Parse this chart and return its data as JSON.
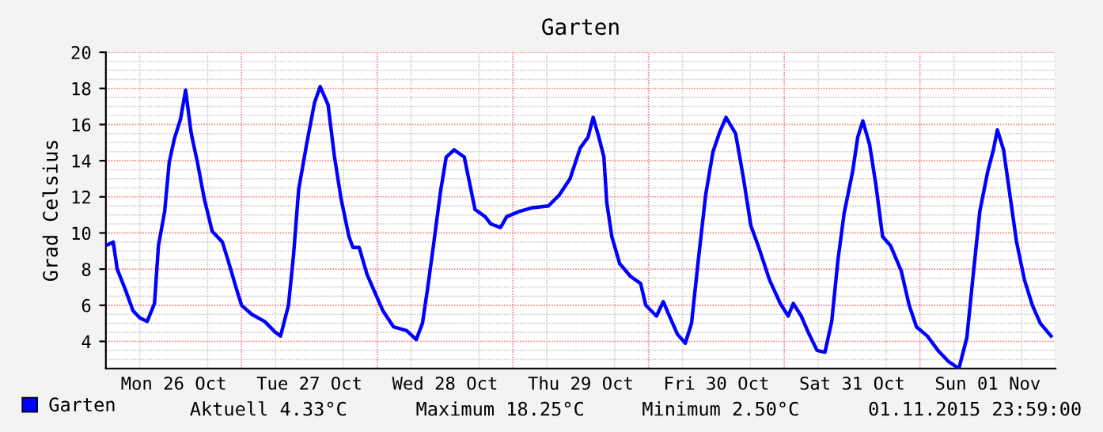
{
  "chart_data": {
    "type": "line",
    "title": "Garten",
    "ylabel": "Grad Celsius",
    "x": [
      "2015-10-26T00:00",
      "2015-10-26T01:18",
      "2015-10-26T02:00",
      "2015-10-26T03:24",
      "2015-10-26T04:48",
      "2015-10-26T06:00",
      "2015-10-26T07:18",
      "2015-10-26T08:36",
      "2015-10-26T09:18",
      "2015-10-26T10:24",
      "2015-10-26T11:12",
      "2015-10-26T12:06",
      "2015-10-26T13:12",
      "2015-10-26T14:06",
      "2015-10-26T15:06",
      "2015-10-26T16:12",
      "2015-10-26T17:24",
      "2015-10-26T18:48",
      "2015-10-26T20:36",
      "2015-10-26T21:36",
      "2015-10-26T23:00",
      "2015-10-27T00:00",
      "2015-10-27T01:48",
      "2015-10-27T04:06",
      "2015-10-27T06:00",
      "2015-10-27T06:54",
      "2015-10-27T08:18",
      "2015-10-27T09:12",
      "2015-10-27T10:06",
      "2015-10-27T11:30",
      "2015-10-27T12:54",
      "2015-10-27T13:54",
      "2015-10-27T15:18",
      "2015-10-27T16:24",
      "2015-10-27T17:36",
      "2015-10-27T19:00",
      "2015-10-27T19:42",
      "2015-10-27T20:48",
      "2015-10-27T22:12",
      "2015-10-27T23:36",
      "2015-10-28T01:00",
      "2015-10-28T02:54",
      "2015-10-28T05:12",
      "2015-10-28T06:54",
      "2015-10-28T08:00",
      "2015-10-28T08:54",
      "2015-10-28T09:54",
      "2015-10-28T11:12",
      "2015-10-28T12:12",
      "2015-10-28T13:36",
      "2015-10-28T15:24",
      "2015-10-28T17:18",
      "2015-10-28T19:06",
      "2015-10-28T20:06",
      "2015-10-28T21:48",
      "2015-10-28T22:54",
      "2015-10-29T01:12",
      "2015-10-29T03:30",
      "2015-10-29T06:18",
      "2015-10-29T08:12",
      "2015-10-29T10:06",
      "2015-10-29T11:54",
      "2015-10-29T13:18",
      "2015-10-29T14:12",
      "2015-10-29T15:12",
      "2015-10-29T16:06",
      "2015-10-29T16:36",
      "2015-10-29T17:30",
      "2015-10-29T18:54",
      "2015-10-29T20:48",
      "2015-10-29T22:36",
      "2015-10-29T23:30",
      "2015-10-30T01:24",
      "2015-10-30T02:36",
      "2015-10-30T03:42",
      "2015-10-30T05:06",
      "2015-10-30T06:30",
      "2015-10-30T07:36",
      "2015-10-30T08:48",
      "2015-10-30T10:06",
      "2015-10-30T11:24",
      "2015-10-30T12:36",
      "2015-10-30T13:42",
      "2015-10-30T15:24",
      "2015-10-30T16:48",
      "2015-10-30T18:06",
      "2015-10-30T19:30",
      "2015-10-30T21:24",
      "2015-10-30T23:18",
      "2015-10-31T00:42",
      "2015-10-31T01:36",
      "2015-10-31T03:00",
      "2015-10-31T04:24",
      "2015-10-31T05:48",
      "2015-10-31T07:12",
      "2015-10-31T08:24",
      "2015-10-31T09:30",
      "2015-10-31T10:36",
      "2015-10-31T12:06",
      "2015-10-31T13:00",
      "2015-10-31T13:54",
      "2015-10-31T15:06",
      "2015-10-31T16:12",
      "2015-10-31T17:24",
      "2015-10-31T18:48",
      "2015-10-31T20:42",
      "2015-10-31T22:06",
      "2015-10-31T23:24",
      "2015-11-01T01:18",
      "2015-11-01T03:12",
      "2015-11-01T05:00",
      "2015-11-01T06:54",
      "2015-11-01T08:18",
      "2015-11-01T09:30",
      "2015-11-01T10:36",
      "2015-11-01T12:00",
      "2015-11-01T13:00",
      "2015-11-01T13:42",
      "2015-11-01T14:48",
      "2015-11-01T15:42",
      "2015-11-01T17:06",
      "2015-11-01T18:30",
      "2015-11-01T19:54",
      "2015-11-01T21:18",
      "2015-11-01T23:12"
    ],
    "series": [
      {
        "name": "Garten",
        "color": "#0000ff",
        "values": [
          9.3,
          9.5,
          8.0,
          6.9,
          5.7,
          5.3,
          5.1,
          6.1,
          9.3,
          11.2,
          13.9,
          15.2,
          16.3,
          17.9,
          15.5,
          13.9,
          11.9,
          10.1,
          9.5,
          8.5,
          7.0,
          6.0,
          5.5,
          5.1,
          4.5,
          4.3,
          6.0,
          8.8,
          12.4,
          14.9,
          17.2,
          18.1,
          17.1,
          14.3,
          11.9,
          9.8,
          9.2,
          9.2,
          7.7,
          6.7,
          5.7,
          4.8,
          4.6,
          4.1,
          5.0,
          6.9,
          9.2,
          12.3,
          14.2,
          14.6,
          14.2,
          11.3,
          10.9,
          10.5,
          10.3,
          10.9,
          11.2,
          11.4,
          11.5,
          12.1,
          13.0,
          14.7,
          15.3,
          16.4,
          15.3,
          14.2,
          11.7,
          9.8,
          8.3,
          7.6,
          7.2,
          6.0,
          5.4,
          6.2,
          5.4,
          4.4,
          3.9,
          5.0,
          8.5,
          12.1,
          14.5,
          15.6,
          16.4,
          15.5,
          13.0,
          10.4,
          9.2,
          7.4,
          6.1,
          5.4,
          6.1,
          5.4,
          4.4,
          3.5,
          3.4,
          5.1,
          8.5,
          11.1,
          13.4,
          15.3,
          16.2,
          14.9,
          12.7,
          9.8,
          9.3,
          7.9,
          6.0,
          4.8,
          4.3,
          3.5,
          2.9,
          2.5,
          4.2,
          7.9,
          11.2,
          13.4,
          14.6,
          15.7,
          14.6,
          12.6,
          9.5,
          7.4,
          6.0,
          5.0,
          4.3
        ]
      }
    ],
    "xlim": [
      "2015-10-26T00:00",
      "2015-11-02T00:00"
    ],
    "xticks": [
      {
        "value": "2015-10-26T12:00",
        "label": "Mon 26 Oct"
      },
      {
        "value": "2015-10-27T00:00",
        "label": null
      },
      {
        "value": "2015-10-27T12:00",
        "label": "Tue 27 Oct"
      },
      {
        "value": "2015-10-28T00:00",
        "label": null
      },
      {
        "value": "2015-10-28T12:00",
        "label": "Wed 28 Oct"
      },
      {
        "value": "2015-10-29T00:00",
        "label": null
      },
      {
        "value": "2015-10-29T12:00",
        "label": "Thu 29 Oct"
      },
      {
        "value": "2015-10-30T00:00",
        "label": null
      },
      {
        "value": "2015-10-30T12:00",
        "label": "Fri 30 Oct"
      },
      {
        "value": "2015-10-31T00:00",
        "label": null
      },
      {
        "value": "2015-10-31T12:00",
        "label": "Sat 31 Oct"
      },
      {
        "value": "2015-11-01T00:00",
        "label": null
      },
      {
        "value": "2015-11-01T12:00",
        "label": "Sun 01 Nov"
      }
    ],
    "ylim": [
      2.5,
      20
    ],
    "yticks": [
      4,
      6,
      8,
      10,
      12,
      14,
      16,
      18,
      20
    ],
    "grid": true,
    "legend": "bottom left",
    "marker": "none",
    "line_style": "solid",
    "annotations": [
      "Aktuell 4.33°C",
      "Maximum 18.25°C",
      "Minimum 2.50°C",
      "01.11.2015 23:59:00"
    ]
  }
}
